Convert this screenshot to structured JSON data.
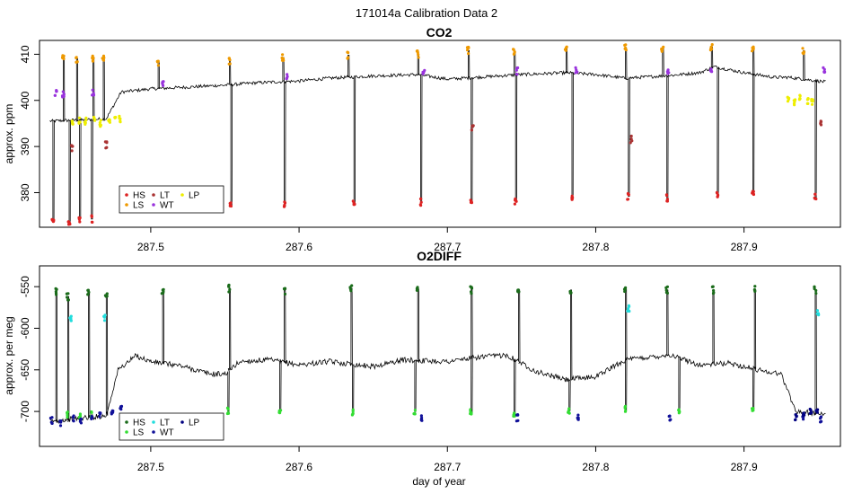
{
  "figure_title": "171014a   Calibration Data 2",
  "chart_data": [
    {
      "type": "line",
      "title": "CO2",
      "xlabel": "",
      "ylabel": "approx. ppm",
      "xlim": [
        287.425,
        287.965
      ],
      "ylim": [
        372.5,
        413.0
      ],
      "x_ticks": [
        287.5,
        287.6,
        287.7,
        287.8,
        287.9
      ],
      "x_tick_labels": [
        "287.5",
        "287.6",
        "287.7",
        "287.8",
        "287.9"
      ],
      "y_ticks": [
        380,
        390,
        400,
        410
      ],
      "y_tick_labels": [
        "380",
        "390",
        "400",
        "410"
      ],
      "baseline": [
        [
          287.432,
          395.5
        ],
        [
          287.47,
          396
        ],
        [
          287.48,
          401.8
        ],
        [
          287.5,
          402.5
        ],
        [
          287.52,
          402.8
        ],
        [
          287.55,
          403.3
        ],
        [
          287.57,
          403.8
        ],
        [
          287.6,
          404.2
        ],
        [
          287.62,
          404.8
        ],
        [
          287.65,
          405.3
        ],
        [
          287.68,
          405.6
        ],
        [
          287.7,
          404.6
        ],
        [
          287.72,
          405.0
        ],
        [
          287.75,
          405.6
        ],
        [
          287.78,
          406.0
        ],
        [
          287.8,
          405.6
        ],
        [
          287.82,
          404.8
        ],
        [
          287.85,
          405.4
        ],
        [
          287.87,
          406.0
        ],
        [
          287.88,
          407.3
        ],
        [
          287.9,
          406.0
        ],
        [
          287.92,
          405.0
        ],
        [
          287.93,
          405.0
        ],
        [
          287.955,
          404.0
        ]
      ],
      "series": [
        {
          "name": "HS",
          "color": "#dd2222",
          "points": [
            [
              287.434,
              374.2
            ],
            [
              287.445,
              373.8
            ],
            [
              287.452,
              374.4
            ],
            [
              287.46,
              374.3
            ],
            [
              287.554,
              377.2
            ],
            [
              287.59,
              377.3
            ],
            [
              287.637,
              377.7
            ],
            [
              287.682,
              377.9
            ],
            [
              287.716,
              378.1
            ],
            [
              287.746,
              378.2
            ],
            [
              287.784,
              379.0
            ],
            [
              287.822,
              379.2
            ],
            [
              287.848,
              378.8
            ],
            [
              287.882,
              379.4
            ],
            [
              287.906,
              379.5
            ],
            [
              287.948,
              379.0
            ]
          ]
        },
        {
          "name": "LS",
          "color": "#ee9900",
          "points": [
            [
              287.441,
              409.3
            ],
            [
              287.45,
              409.0
            ],
            [
              287.461,
              409.1
            ],
            [
              287.468,
              409.3
            ],
            [
              287.505,
              408.3
            ],
            [
              287.553,
              408.6
            ],
            [
              287.589,
              409.3
            ],
            [
              287.633,
              409.8
            ],
            [
              287.68,
              410.0
            ],
            [
              287.714,
              410.8
            ],
            [
              287.745,
              410.7
            ],
            [
              287.78,
              411.1
            ],
            [
              287.82,
              411.4
            ],
            [
              287.845,
              411.2
            ],
            [
              287.878,
              411.6
            ],
            [
              287.906,
              411.3
            ],
            [
              287.94,
              410.8
            ]
          ]
        },
        {
          "name": "LT",
          "color": "#aa3333",
          "points": [
            [
              287.447,
              389.5
            ],
            [
              287.47,
              390.3
            ],
            [
              287.717,
              393.8
            ],
            [
              287.824,
              391.5
            ],
            [
              287.952,
              394.9
            ]
          ]
        },
        {
          "name": "WT",
          "color": "#9933dd",
          "points": [
            [
              287.436,
              401.6
            ],
            [
              287.441,
              401.4
            ],
            [
              287.461,
              401.9
            ],
            [
              287.508,
              403.5
            ],
            [
              287.592,
              405.0
            ],
            [
              287.684,
              406.0
            ],
            [
              287.747,
              406.4
            ],
            [
              287.787,
              406.5
            ],
            [
              287.849,
              406.6
            ],
            [
              287.878,
              406.8
            ],
            [
              287.954,
              406.5
            ]
          ]
        },
        {
          "name": "LP",
          "color": "#eeee00",
          "points": [
            [
              287.447,
              395.3
            ],
            [
              287.452,
              395.8
            ],
            [
              287.456,
              395.5
            ],
            [
              287.462,
              395.6
            ],
            [
              287.466,
              395.1
            ],
            [
              287.472,
              396.0
            ],
            [
              287.476,
              396.4
            ],
            [
              287.479,
              395.8
            ],
            [
              287.93,
              400.2
            ],
            [
              287.934,
              399.8
            ],
            [
              287.938,
              400.6
            ],
            [
              287.943,
              400.0
            ],
            [
              287.946,
              399.7
            ]
          ]
        }
      ],
      "legend": {
        "position": "bottom-left",
        "entries": [
          "HS",
          "LS",
          "LT",
          "WT",
          "LP"
        ]
      }
    },
    {
      "type": "line",
      "title": "O2DIFF",
      "xlabel": "day of year",
      "ylabel": "approx. per meg",
      "xlim": [
        287.425,
        287.965
      ],
      "ylim": [
        -742,
        -525
      ],
      "x_ticks": [
        287.5,
        287.6,
        287.7,
        287.8,
        287.9
      ],
      "x_tick_labels": [
        "287.5",
        "287.6",
        "287.7",
        "287.8",
        "287.9"
      ],
      "y_ticks": [
        -700,
        -650,
        -600,
        -550
      ],
      "y_tick_labels": [
        "-700",
        "-650",
        "-600",
        "-550"
      ],
      "baseline": [
        [
          287.432,
          -712
        ],
        [
          287.47,
          -705
        ],
        [
          287.478,
          -650
        ],
        [
          287.49,
          -633
        ],
        [
          287.5,
          -640
        ],
        [
          287.52,
          -645
        ],
        [
          287.53,
          -650
        ],
        [
          287.54,
          -655
        ],
        [
          287.55,
          -655
        ],
        [
          287.56,
          -640
        ],
        [
          287.58,
          -638
        ],
        [
          287.6,
          -644
        ],
        [
          287.62,
          -640
        ],
        [
          287.65,
          -646
        ],
        [
          287.67,
          -638
        ],
        [
          287.7,
          -640
        ],
        [
          287.72,
          -635
        ],
        [
          287.74,
          -632
        ],
        [
          287.76,
          -652
        ],
        [
          287.78,
          -662
        ],
        [
          287.8,
          -658
        ],
        [
          287.82,
          -638
        ],
        [
          287.85,
          -632
        ],
        [
          287.87,
          -644
        ],
        [
          287.89,
          -642
        ],
        [
          287.91,
          -650
        ],
        [
          287.925,
          -655
        ],
        [
          287.935,
          -700
        ],
        [
          287.955,
          -703
        ]
      ],
      "series": [
        {
          "name": "HS",
          "color": "#1a6b1a",
          "points": [
            [
              287.436,
              -556
            ],
            [
              287.444,
              -562
            ],
            [
              287.458,
              -558
            ],
            [
              287.47,
              -558
            ],
            [
              287.508,
              -554
            ],
            [
              287.553,
              -552
            ],
            [
              287.59,
              -555
            ],
            [
              287.635,
              -552
            ],
            [
              287.68,
              -553
            ],
            [
              287.716,
              -554
            ],
            [
              287.748,
              -554
            ],
            [
              287.783,
              -554
            ],
            [
              287.82,
              -554
            ],
            [
              287.848,
              -554
            ],
            [
              287.879,
              -554
            ],
            [
              287.907,
              -553
            ],
            [
              287.948,
              -554
            ]
          ]
        },
        {
          "name": "LS",
          "color": "#33dd33",
          "points": [
            [
              287.444,
              -703
            ],
            [
              287.452,
              -707
            ],
            [
              287.46,
              -704
            ],
            [
              287.552,
              -700
            ],
            [
              287.587,
              -698
            ],
            [
              287.636,
              -702
            ],
            [
              287.678,
              -700
            ],
            [
              287.716,
              -702
            ],
            [
              287.745,
              -703
            ],
            [
              287.782,
              -699
            ],
            [
              287.82,
              -698
            ],
            [
              287.856,
              -700
            ],
            [
              287.906,
              -699
            ]
          ]
        },
        {
          "name": "LT",
          "color": "#22dddd",
          "points": [
            [
              287.446,
              -588
            ],
            [
              287.469,
              -587
            ],
            [
              287.822,
              -577
            ],
            [
              287.95,
              -580
            ]
          ]
        },
        {
          "name": "WT",
          "color": "#111199",
          "points": [
            [
              287.433,
              -711
            ],
            [
              287.439,
              -714
            ],
            [
              287.448,
              -708
            ],
            [
              287.453,
              -712
            ],
            [
              287.46,
              -710
            ],
            [
              287.466,
              -706
            ],
            [
              287.474,
              -701
            ],
            [
              287.48,
              -698
            ],
            [
              287.683,
              -708
            ],
            [
              287.747,
              -708
            ],
            [
              287.788,
              -708
            ],
            [
              287.85,
              -708
            ],
            [
              287.94,
              -705
            ],
            [
              287.952,
              -710
            ]
          ]
        },
        {
          "name": "LP",
          "color": "#000080",
          "points": [
            [
              287.935,
              -706
            ],
            [
              287.94,
              -703
            ],
            [
              287.945,
              -700
            ],
            [
              287.949,
              -702
            ]
          ]
        }
      ],
      "legend": {
        "position": "bottom-left",
        "entries": [
          "HS",
          "LS",
          "LT",
          "WT",
          "LP"
        ]
      }
    }
  ]
}
